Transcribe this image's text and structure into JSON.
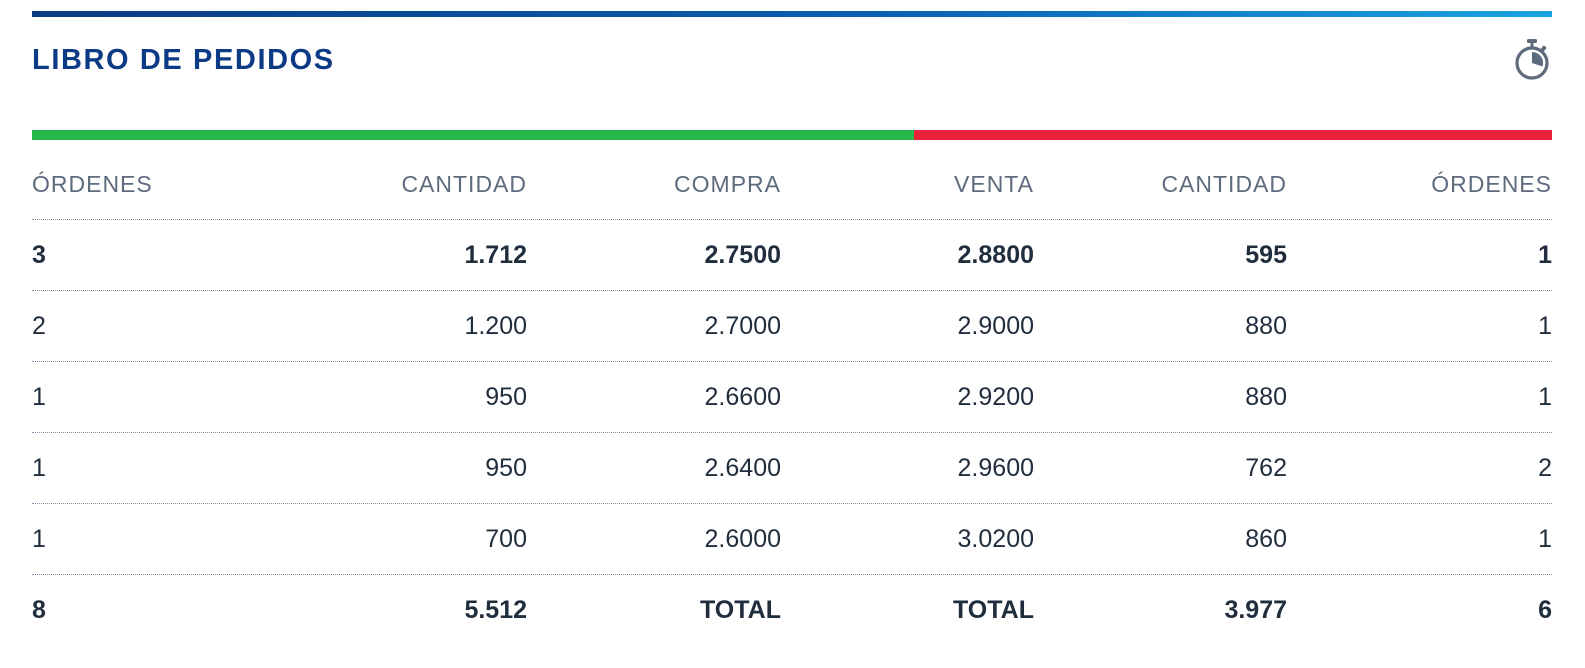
{
  "widget": {
    "title": "LIBRO DE PEDIDOS",
    "timer_icon": "stopwatch-icon",
    "accent_color": "#0c3b85",
    "bid_color": "#28b84a",
    "ask_color": "#e8203a"
  },
  "table": {
    "headers": [
      "ÓRDENES",
      "CANTIDAD",
      "COMPRA",
      "VENTA",
      "CANTIDAD",
      "ÓRDENES"
    ],
    "rows": [
      [
        "3",
        "1.712",
        "2.7500",
        "2.8800",
        "595",
        "1"
      ],
      [
        "2",
        "1.200",
        "2.7000",
        "2.9000",
        "880",
        "1"
      ],
      [
        "1",
        "950",
        "2.6600",
        "2.9200",
        "880",
        "1"
      ],
      [
        "1",
        "950",
        "2.6400",
        "2.9600",
        "762",
        "2"
      ],
      [
        "1",
        "700",
        "2.6000",
        "3.0200",
        "860",
        "1"
      ]
    ],
    "totals": [
      "8",
      "5.512",
      "TOTAL",
      "TOTAL",
      "3.977",
      "6"
    ]
  }
}
